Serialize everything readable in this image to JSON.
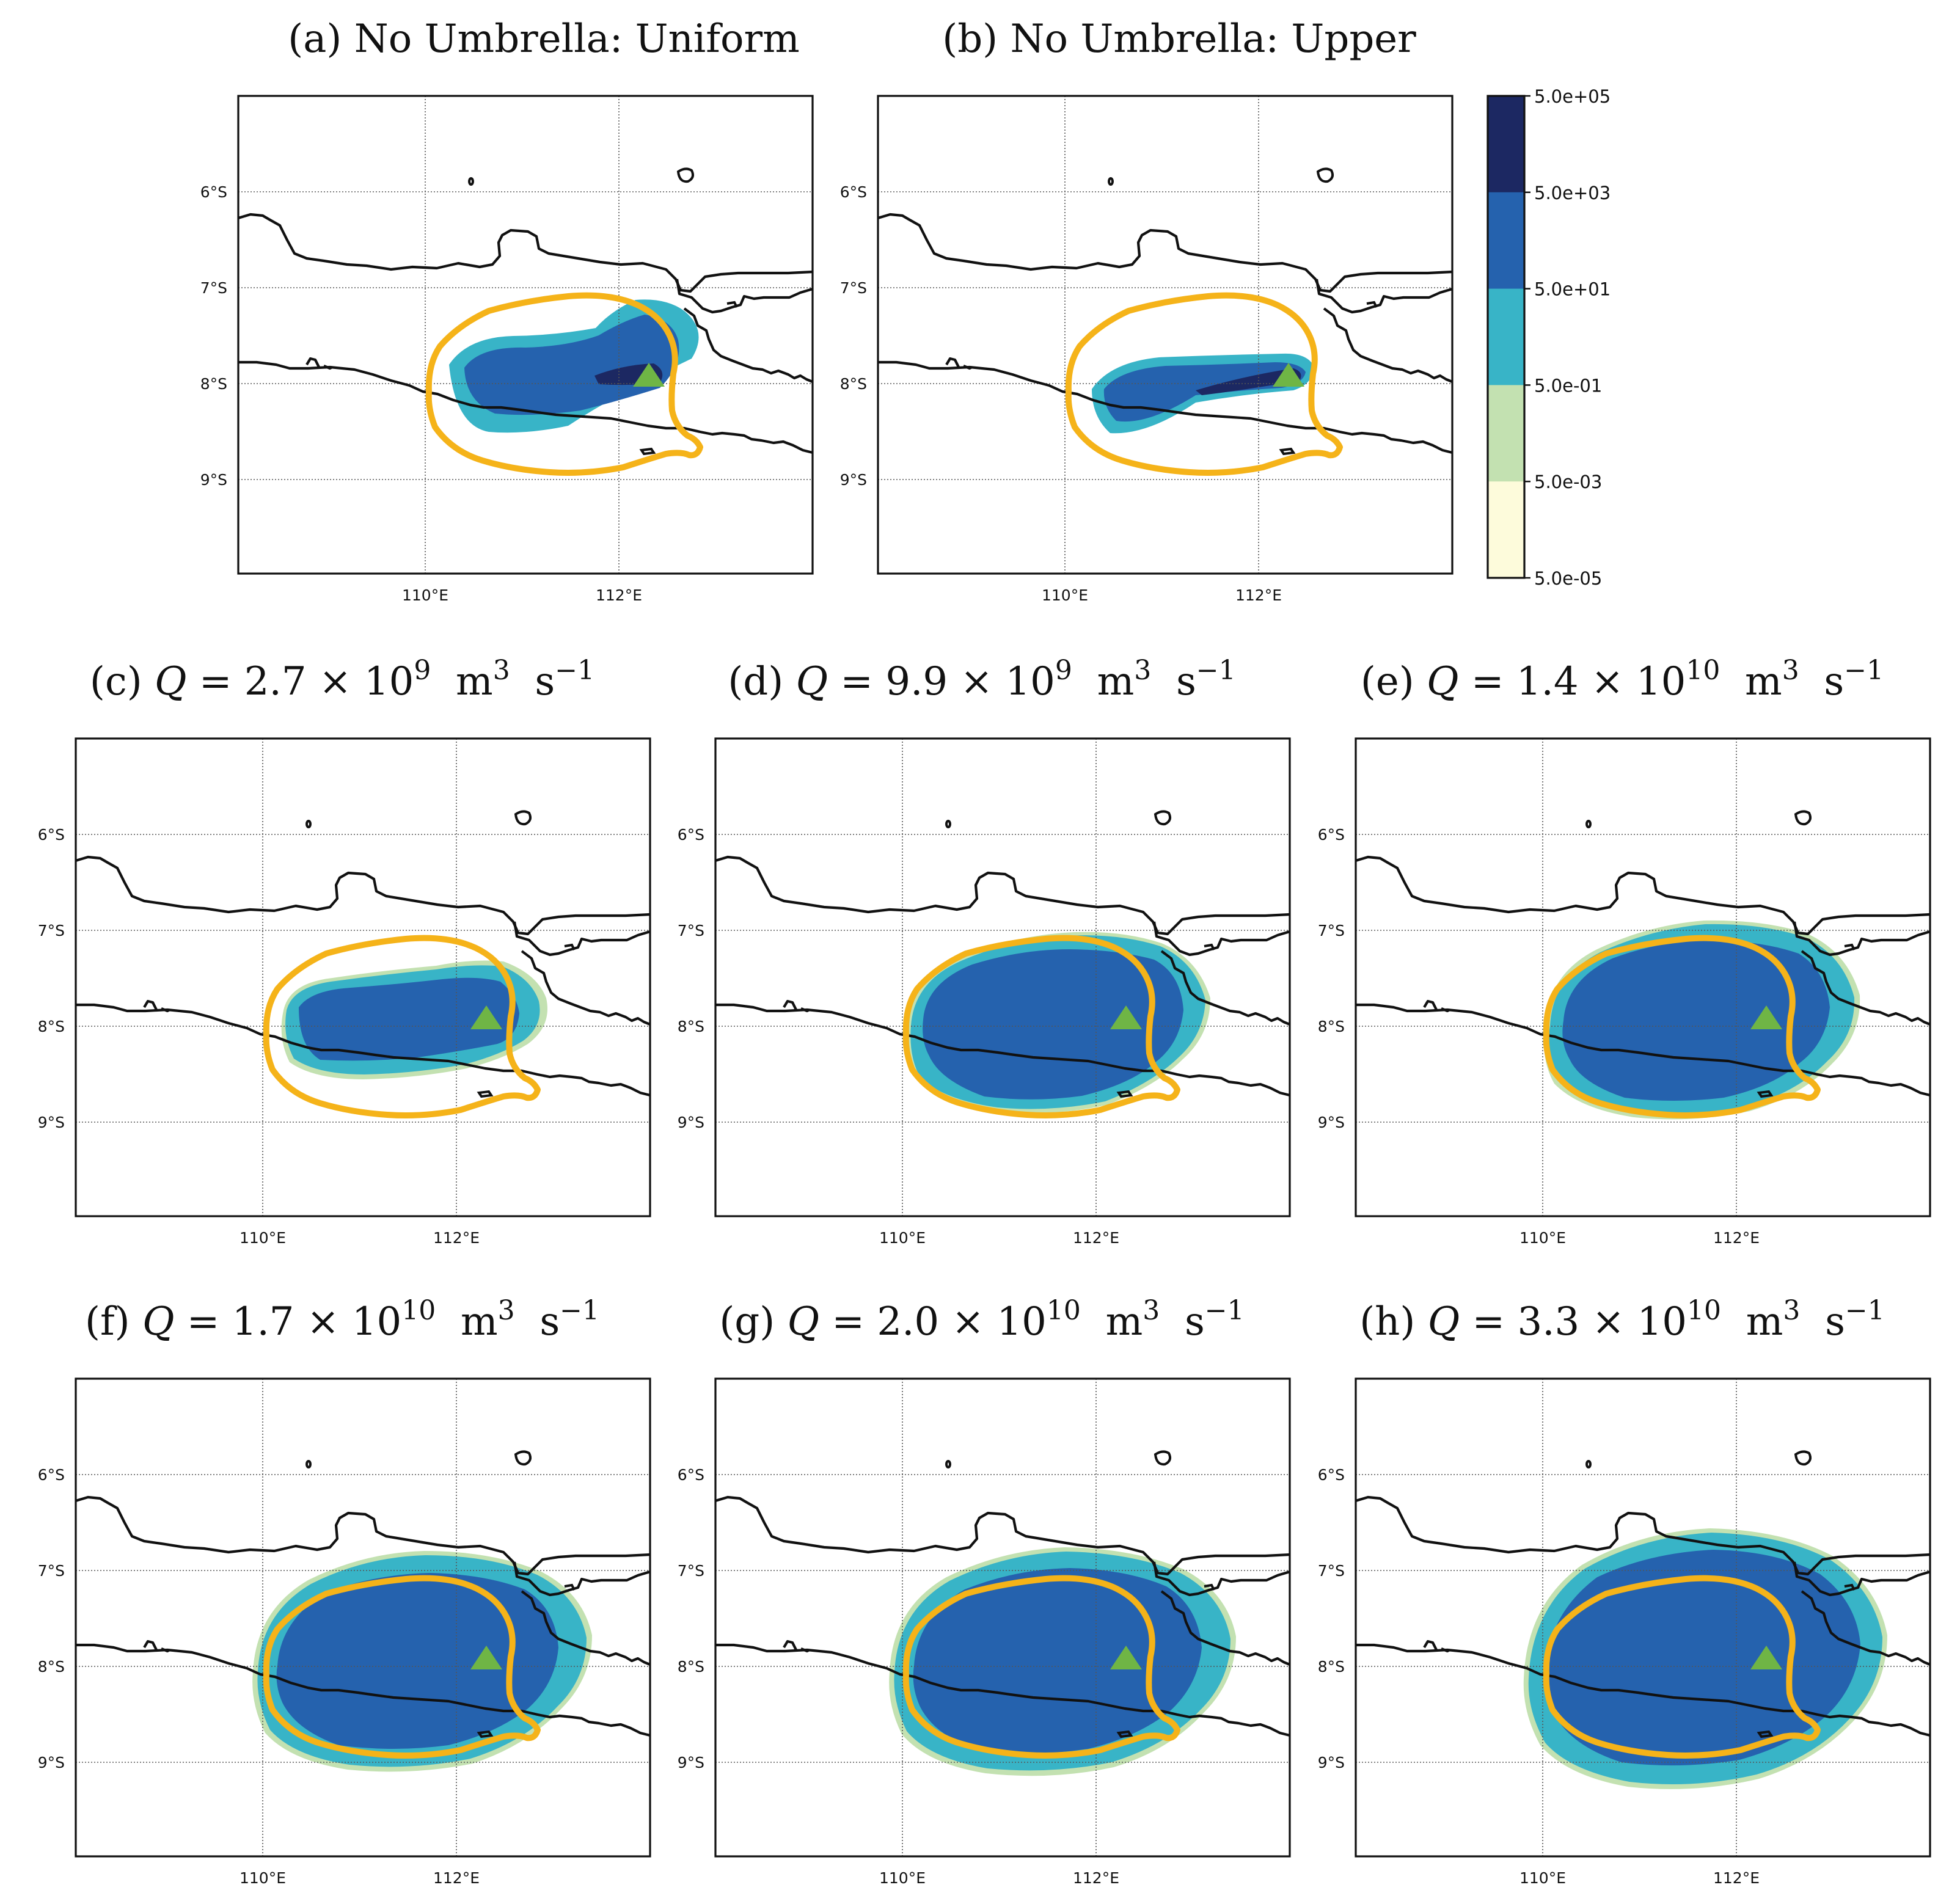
{
  "figure": {
    "panels": [
      {
        "id": "a",
        "title": "(a) No Umbrella: Uniform",
        "eq": false
      },
      {
        "id": "b",
        "title": "(b) No Umbrella: Upper",
        "eq": false
      },
      {
        "id": "c",
        "label": "(c)",
        "q_mant": "2.7",
        "q_exp": "9",
        "eq": true
      },
      {
        "id": "d",
        "label": "(d)",
        "q_mant": "9.9",
        "q_exp": "9",
        "eq": true
      },
      {
        "id": "e",
        "label": "(e)",
        "q_mant": "1.4",
        "q_exp": "10",
        "eq": true
      },
      {
        "id": "f",
        "label": "(f)",
        "q_mant": "1.7",
        "q_exp": "10",
        "eq": true
      },
      {
        "id": "g",
        "label": "(g)",
        "q_mant": "2.0",
        "q_exp": "10",
        "eq": true
      },
      {
        "id": "h",
        "label": "(h)",
        "q_mant": "3.3",
        "q_exp": "10",
        "eq": true
      }
    ],
    "q_symbol": "Q",
    "eq_sign": "=",
    "times_sign": "×",
    "ten": "10",
    "unit_m": "m",
    "unit_m_exp": "3",
    "unit_s": "s",
    "unit_s_exp": "−1",
    "lat_ticks": [
      "6°S",
      "7°S",
      "8°S",
      "9°S"
    ],
    "lon_ticks": [
      "110°E",
      "112°E"
    ],
    "colorbar": {
      "labels": [
        "5.0e+05",
        "5.0e+03",
        "5.0e+01",
        "5.0e-01",
        "5.0e-03",
        "5.0e-05"
      ],
      "colors": [
        "#1c2862",
        "#2562ae",
        "#38b4c7",
        "#c3e1b1",
        "#fdfbdb"
      ]
    },
    "colors": {
      "observed_outline": "#f5b319",
      "vent_marker": "#6fb545",
      "coastline": "#111111"
    }
  }
}
